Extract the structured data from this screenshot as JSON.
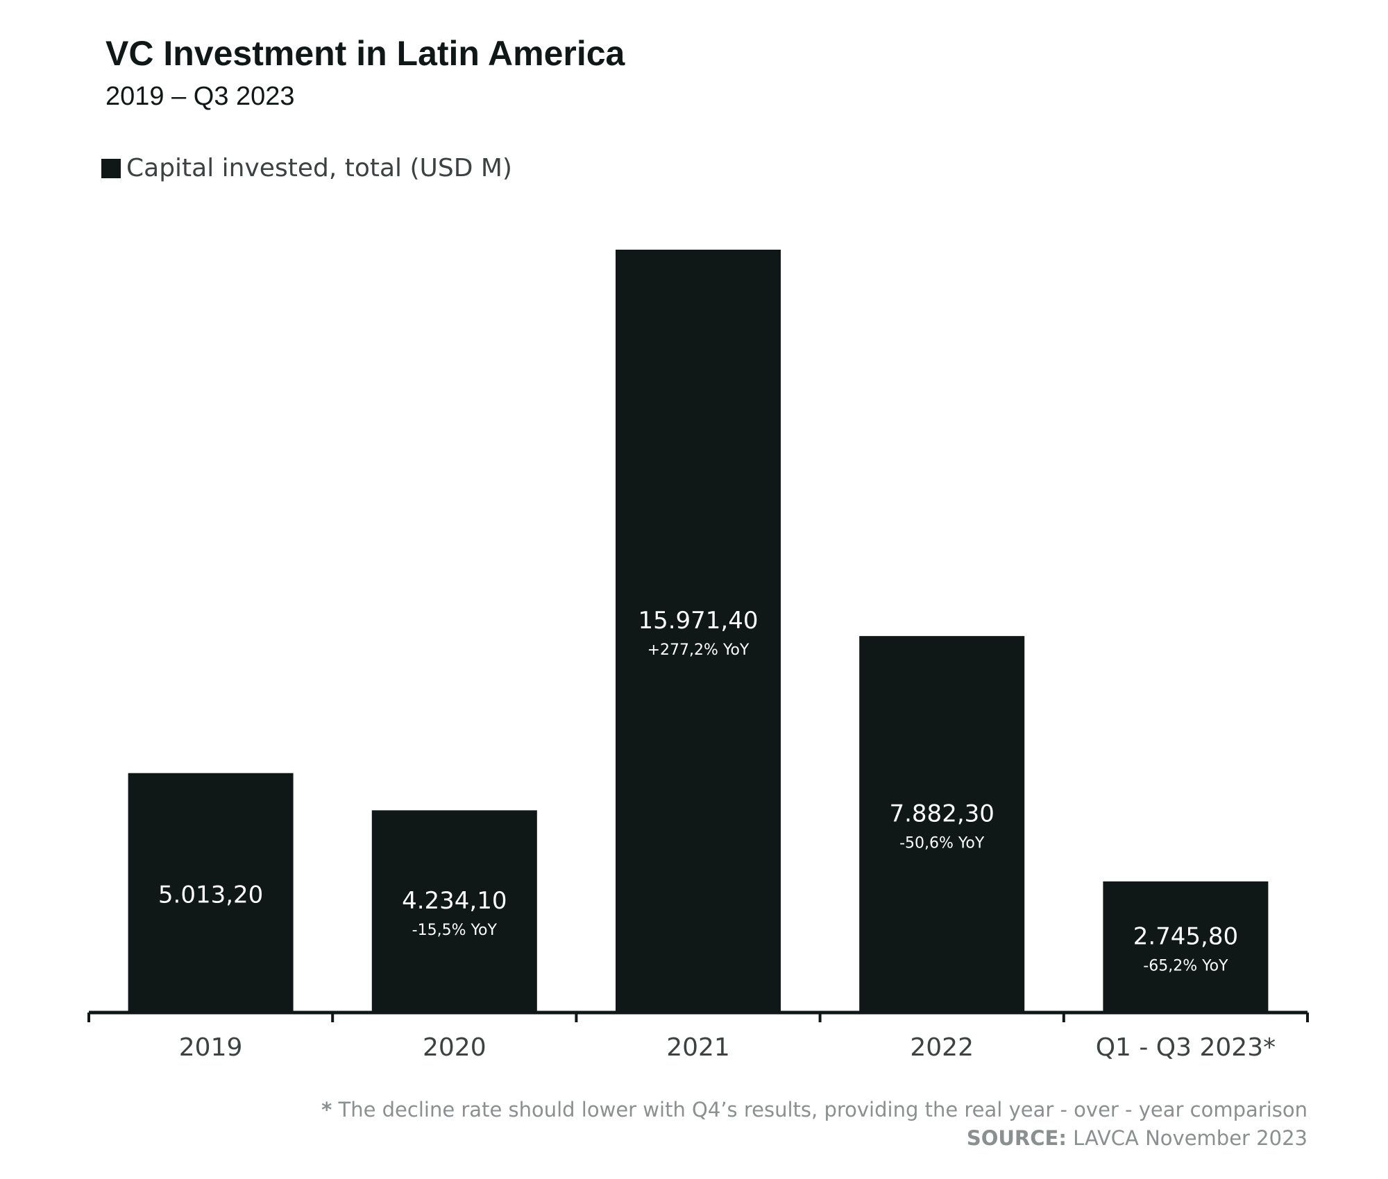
{
  "header": {
    "title": "VC Investment in Latin America",
    "subtitle": "2019 – Q3 2023"
  },
  "legend": {
    "label": "Capital invested, total (USD M)"
  },
  "colors": {
    "bar": "#0f1717",
    "bar_text": "#ffffff",
    "axis_text": "#3c4141",
    "note_text": "#8a8f8f"
  },
  "chart_data": {
    "type": "bar",
    "title": "VC Investment in Latin America",
    "subtitle": "2019 – Q3 2023",
    "xlabel": "",
    "ylabel": "",
    "ylim": [
      0,
      15971.4
    ],
    "grid": false,
    "legend_position": "top-left",
    "categories": [
      "2019",
      "2020",
      "2021",
      "2022",
      "Q1 - Q3 2023*"
    ],
    "series": [
      {
        "name": "Capital invested, total (USD M)",
        "values": [
          5013.2,
          4234.1,
          15971.4,
          7882.3,
          2745.8
        ]
      }
    ],
    "value_labels": [
      "5.013,20",
      "4.234,10",
      "15.971,40",
      "7.882,30",
      "2.745,80"
    ],
    "yoy_labels": [
      "",
      "-15,5% YoY",
      "+277,2% YoY",
      "-50,6% YoY",
      "-65,2% YoY"
    ]
  },
  "notes": {
    "footnote_star": "*",
    "footnote_text": " The decline rate should lower with Q4’s results, providing the real year - over - year comparison",
    "source_label": "SOURCE:",
    "source_text": " LAVCA November 2023"
  }
}
